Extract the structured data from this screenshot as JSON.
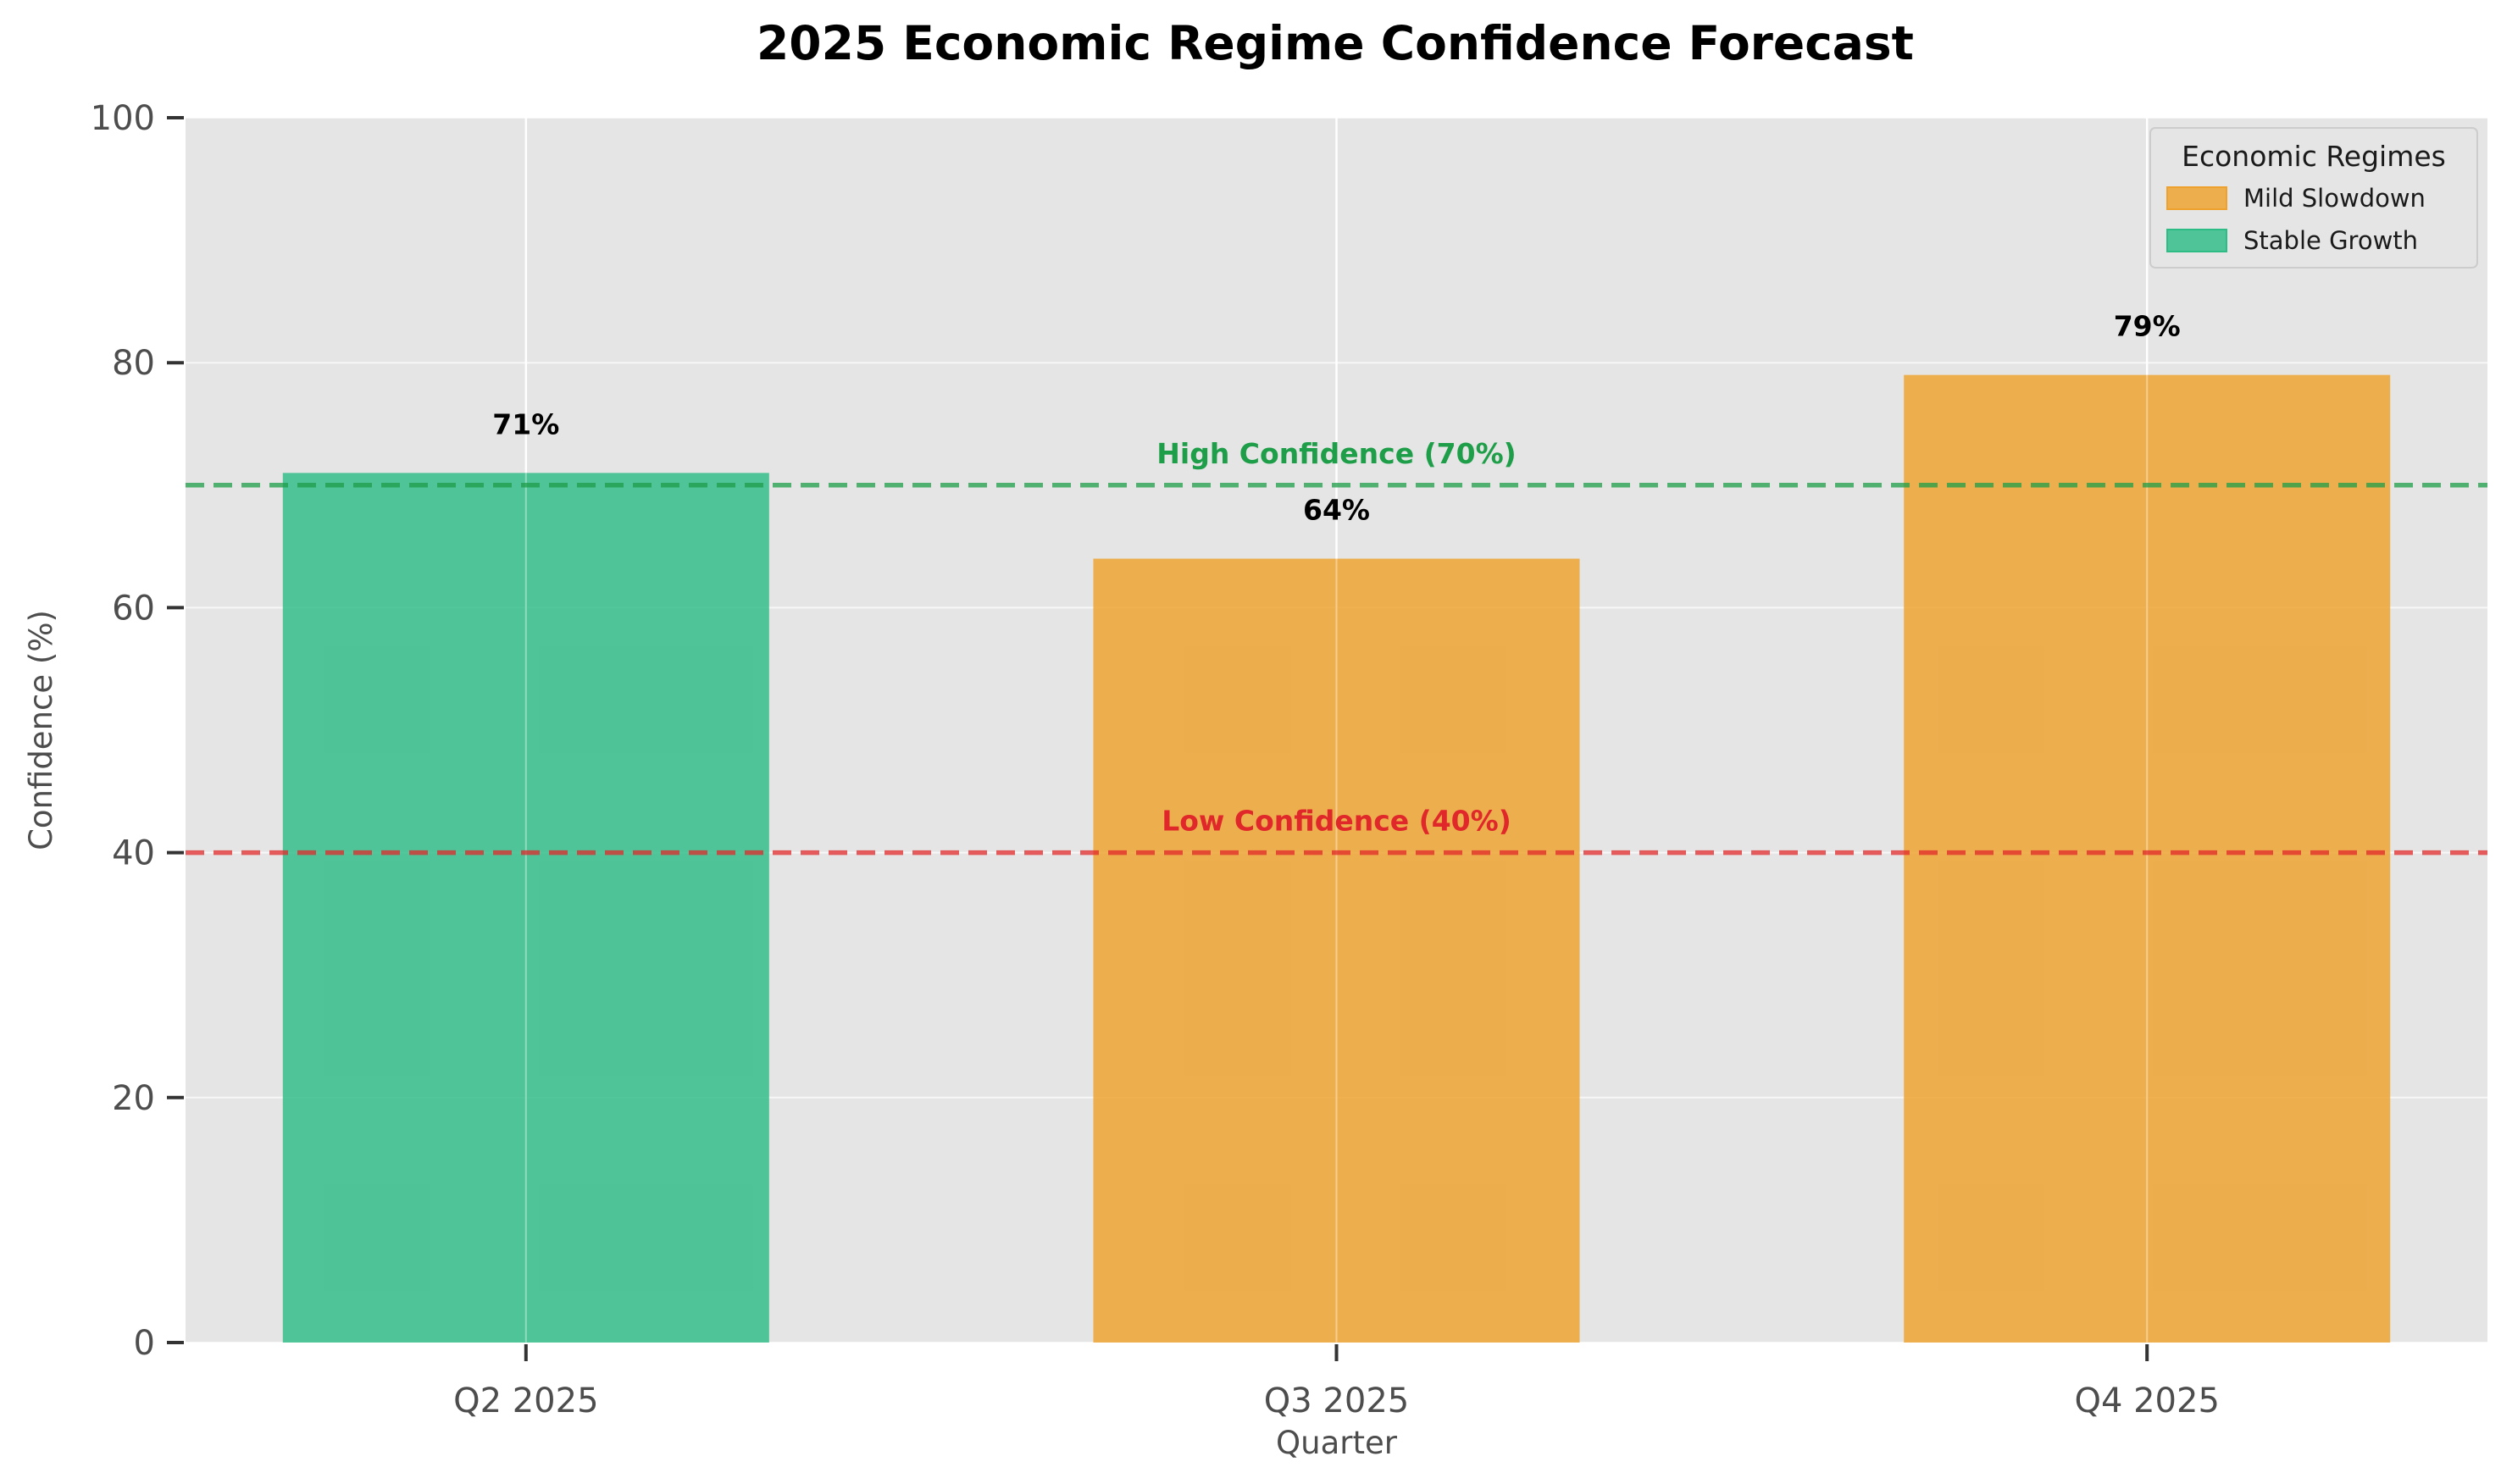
{
  "chart_data": {
    "type": "bar",
    "title": "2025 Economic Regime Confidence Forecast",
    "xlabel": "Quarter",
    "ylabel": "Confidence (%)",
    "ylim": [
      0,
      100
    ],
    "yticks": [
      "0",
      "20",
      "40",
      "60",
      "80",
      "100"
    ],
    "grid": true,
    "categories": [
      "Q2 2025",
      "Q3 2025",
      "Q4 2025"
    ],
    "values": [
      71,
      64,
      79
    ],
    "value_labels": [
      "71%",
      "64%",
      "79%"
    ],
    "bar_regimes": [
      "Stable Growth",
      "Mild Slowdown",
      "Mild Slowdown"
    ],
    "regimes": [
      {
        "name": "Mild Slowdown",
        "color": "#eea12c"
      },
      {
        "name": "Stable Growth",
        "color": "#2dbc86"
      }
    ],
    "reference_lines": [
      {
        "value": 70,
        "label": "High Confidence (70%)",
        "color": "#1e9e48"
      },
      {
        "value": 40,
        "label": "Low Confidence (40%)",
        "color": "#e0282a"
      }
    ],
    "legend": {
      "title": "Economic Regimes",
      "position": "top-right"
    }
  }
}
